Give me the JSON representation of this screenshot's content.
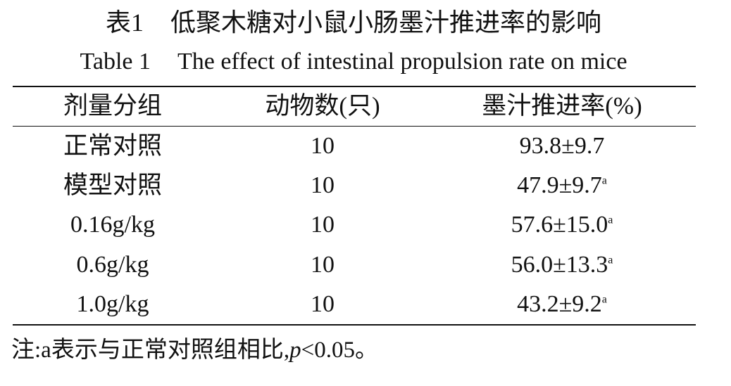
{
  "title": {
    "cn_label": "表1",
    "cn_text": "低聚木糖对小鼠小肠墨汁推进率的影响",
    "en_label": "Table 1",
    "en_text": "The effect of intestinal propulsion rate on mice"
  },
  "table": {
    "headers": [
      "剂量分组",
      "动物数(只)",
      "墨汁推进率(%)"
    ],
    "rows": [
      {
        "group": "正常对照",
        "count": "10",
        "rate": "93.8±9.7",
        "mark": ""
      },
      {
        "group": "模型对照",
        "count": "10",
        "rate": "47.9±9.7",
        "mark": "a"
      },
      {
        "group": "0.16g/kg",
        "count": "10",
        "rate": "57.6±15.0",
        "mark": "a"
      },
      {
        "group": "0.6g/kg",
        "count": "10",
        "rate": "56.0±13.3",
        "mark": "a"
      },
      {
        "group": "1.0g/kg",
        "count": "10",
        "rate": "43.2±9.2",
        "mark": "a"
      }
    ]
  },
  "note": {
    "prefix": "注:a表示与正常对照组相比,",
    "p_symbol": "p",
    "suffix": "<0.05。"
  }
}
